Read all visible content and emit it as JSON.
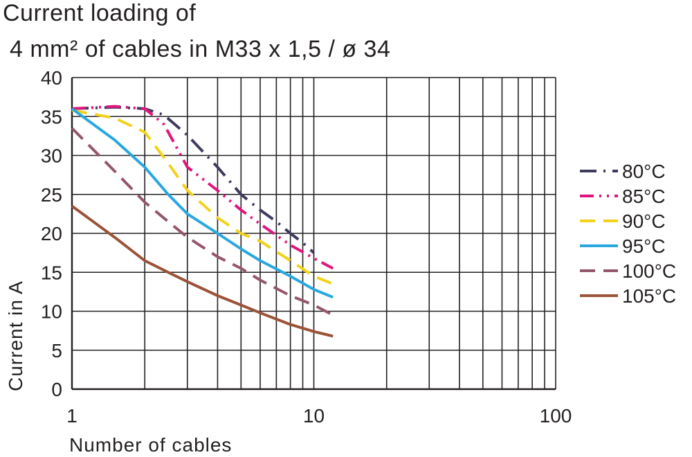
{
  "chart_data": {
    "type": "line",
    "title_line1": "Current  loading  of",
    "title_line2": "4 mm² of cables in M33 x 1,5 / ø 34",
    "xlabel": "Number  of  cables",
    "ylabel": "Current in A",
    "x_scale": "log",
    "xlim": [
      1,
      100
    ],
    "ylim": [
      0,
      40
    ],
    "x_ticks": [
      "1",
      "10",
      "100"
    ],
    "y_ticks": [
      "0",
      "5",
      "10",
      "15",
      "20",
      "25",
      "30",
      "35",
      "40"
    ],
    "grid": true,
    "legend_position": "right",
    "series": [
      {
        "name": "80°C",
        "color": "#3d3b5e",
        "dash": "dash-dot",
        "x": [
          1,
          1.5,
          2,
          2.4,
          3,
          4,
          5,
          6,
          7,
          8,
          9,
          10
        ],
        "y": [
          36,
          36.2,
          36,
          35.2,
          32.6,
          28.5,
          25,
          23,
          21.5,
          20,
          18.8,
          17.5
        ]
      },
      {
        "name": "85°C",
        "color": "#e0157f",
        "dash": "dash-dot-dot",
        "x": [
          1,
          1.5,
          2,
          2.4,
          3,
          4,
          5,
          6,
          8,
          10,
          12
        ],
        "y": [
          36,
          36.3,
          36,
          34,
          28.5,
          25.5,
          23,
          21.2,
          18.5,
          16.8,
          15.5
        ]
      },
      {
        "name": "90°C",
        "color": "#f2d21b",
        "dash": "dashed",
        "x": [
          1,
          1.5,
          2,
          2.5,
          3,
          4,
          5,
          6,
          8,
          10,
          12
        ],
        "y": [
          35.8,
          34.8,
          33,
          29,
          25.5,
          22,
          20,
          19,
          16.5,
          14.5,
          13.5
        ]
      },
      {
        "name": "95°C",
        "color": "#29a7df",
        "dash": "solid",
        "x": [
          1,
          1.5,
          2,
          2.5,
          3,
          4,
          5,
          6,
          8,
          10,
          12
        ],
        "y": [
          36,
          32,
          28.5,
          25,
          22.5,
          20,
          18,
          16.5,
          14.5,
          12.8,
          11.8
        ]
      },
      {
        "name": "100°C",
        "color": "#94566e",
        "dash": "dashed",
        "x": [
          1,
          1.5,
          2,
          2.5,
          3,
          4,
          5,
          6,
          8,
          10,
          12
        ],
        "y": [
          33.5,
          28,
          24,
          21.5,
          19.5,
          17,
          15.5,
          14,
          12,
          10.8,
          9.5
        ]
      },
      {
        "name": "105°C",
        "color": "#9b5338",
        "dash": "solid",
        "x": [
          1,
          1.5,
          2,
          2.5,
          3,
          4,
          5,
          6,
          8,
          10,
          12
        ],
        "y": [
          23.5,
          19.5,
          16.5,
          15,
          13.8,
          12,
          10.8,
          9.8,
          8.3,
          7.4,
          6.8
        ]
      }
    ]
  }
}
